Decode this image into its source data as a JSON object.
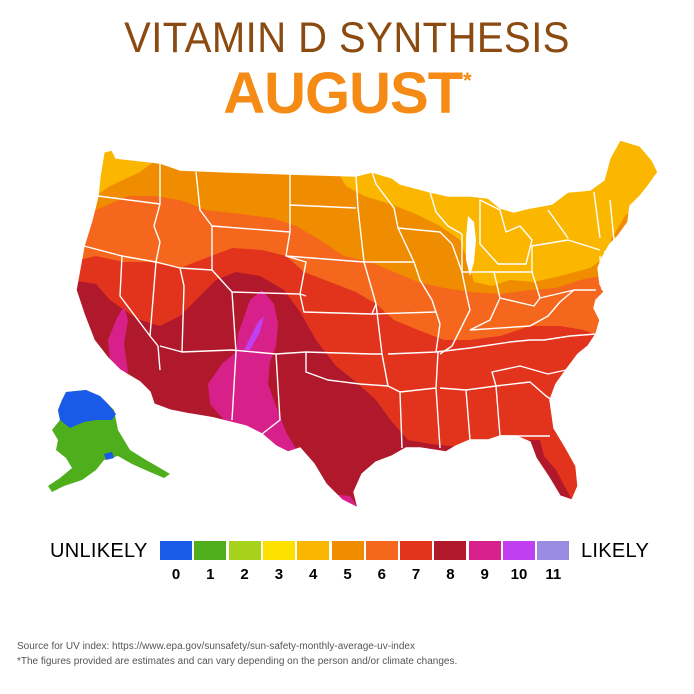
{
  "title": "VITAMIN D SYNTHESIS",
  "month": "AUGUST",
  "asterisk": "*",
  "legend": {
    "low_label": "UNLIKELY",
    "high_label": "LIKELY",
    "scale": [
      {
        "value": "0",
        "color": "#1a5ae8"
      },
      {
        "value": "1",
        "color": "#4fae1c"
      },
      {
        "value": "2",
        "color": "#a6d21a"
      },
      {
        "value": "3",
        "color": "#ffe100"
      },
      {
        "value": "4",
        "color": "#fbb600"
      },
      {
        "value": "5",
        "color": "#f08c00"
      },
      {
        "value": "6",
        "color": "#f5671c"
      },
      {
        "value": "7",
        "color": "#e2331c"
      },
      {
        "value": "8",
        "color": "#b0182c"
      },
      {
        "value": "9",
        "color": "#d8208a"
      },
      {
        "value": "10",
        "color": "#c040f0"
      },
      {
        "value": "11",
        "color": "#9a8ce0"
      }
    ]
  },
  "footnotes": {
    "source": "Source for UV index: https://www.epa.gov/sunsafety/sun-safety-monthly-average-uv-index",
    "disclaimer": "*The figures provided are estimates and can vary depending on the person and/or climate changes."
  }
}
